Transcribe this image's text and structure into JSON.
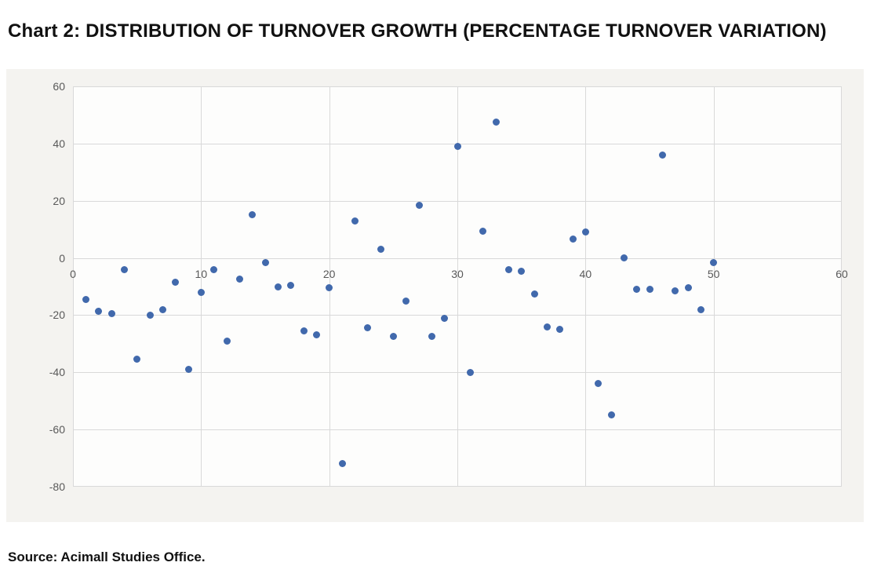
{
  "page": {
    "title": "Chart 2: DISTRIBUTION OF TURNOVER GROWTH (PERCENTAGE TURNOVER VARIATION)",
    "source_note": "Source: Acimall Studies Office."
  },
  "colors": {
    "page_background": "#ffffff",
    "chart_background": "#f4f3f0",
    "plot_background": "#fdfdfc",
    "gridline": "#d9d9d9",
    "marker": "#4169ac",
    "tick_label": "#595959",
    "title_text": "#111111"
  },
  "chart_data": {
    "type": "scatter",
    "title": "Chart 2: DISTRIBUTION OF TURNOVER GROWTH (PERCENTAGE TURNOVER VARIATION)",
    "xlabel": "",
    "ylabel": "",
    "xlim": [
      0,
      60
    ],
    "ylim": [
      -80,
      60
    ],
    "x_ticks": [
      0,
      10,
      20,
      30,
      40,
      50,
      60
    ],
    "y_ticks": [
      60,
      40,
      20,
      0,
      -20,
      -40,
      -60,
      -80
    ],
    "grid": true,
    "legend": false,
    "marker": "circle",
    "x_tick_label_position": "next_to_zero_axis",
    "series": [
      {
        "name": "Percentage turnover variation",
        "points": [
          [
            1,
            -14.5
          ],
          [
            2,
            -18.5
          ],
          [
            3,
            -19.5
          ],
          [
            4,
            -4
          ],
          [
            5,
            -35.5
          ],
          [
            6,
            -20
          ],
          [
            7,
            -18
          ],
          [
            8,
            -8.5
          ],
          [
            9,
            -39
          ],
          [
            10,
            -12
          ],
          [
            11,
            -4
          ],
          [
            12,
            -29
          ],
          [
            13,
            -7.5
          ],
          [
            14,
            15
          ],
          [
            15,
            -1.5
          ],
          [
            16,
            -10
          ],
          [
            17,
            -9.5
          ],
          [
            18,
            -25.5
          ],
          [
            19,
            -27
          ],
          [
            20,
            -10.5
          ],
          [
            21,
            -72
          ],
          [
            22,
            13
          ],
          [
            23,
            -24.5
          ],
          [
            24,
            3
          ],
          [
            25,
            -27.5
          ],
          [
            26,
            -15
          ],
          [
            27,
            18.5
          ],
          [
            28,
            -27.5
          ],
          [
            29,
            -21
          ],
          [
            30,
            39
          ],
          [
            31,
            -40
          ],
          [
            32,
            9.5
          ],
          [
            33,
            47.5
          ],
          [
            34,
            -4
          ],
          [
            35,
            -4.5
          ],
          [
            36,
            -12.5
          ],
          [
            37,
            -24
          ],
          [
            38,
            -25
          ],
          [
            39,
            6.5
          ],
          [
            40,
            9
          ],
          [
            41,
            -44
          ],
          [
            42,
            -55
          ],
          [
            43,
            0
          ],
          [
            44,
            -11
          ],
          [
            45,
            -11
          ],
          [
            46,
            36
          ],
          [
            47,
            -11.5
          ],
          [
            48,
            -10.5
          ],
          [
            49,
            -18
          ],
          [
            50,
            -1.5
          ]
        ]
      }
    ]
  }
}
